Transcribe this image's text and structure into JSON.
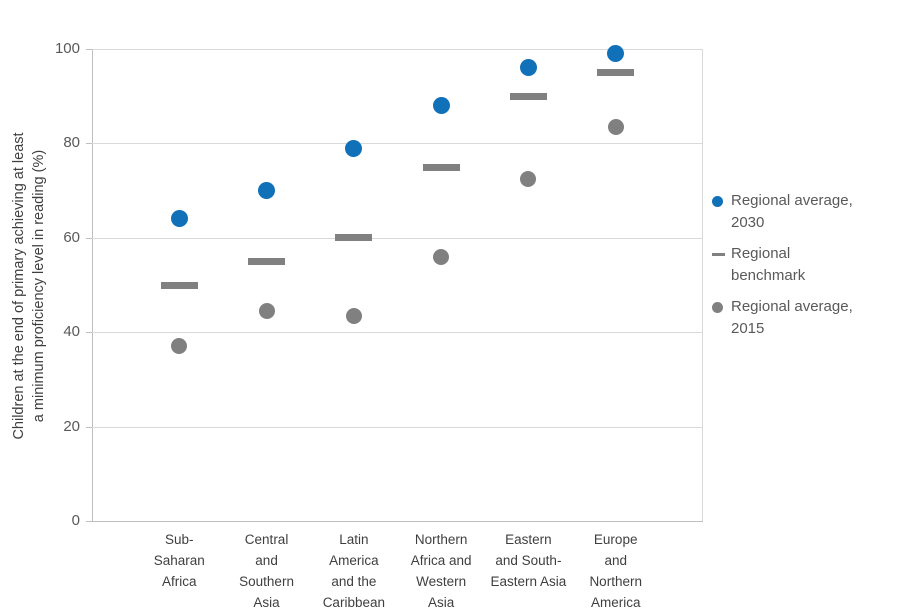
{
  "chart_data": {
    "type": "scatter",
    "title": "",
    "xlabel": "",
    "ylabel": "Children at the end of primary achieving at least a minimum proficiency level in reading (%)",
    "ylabel_lines": [
      "Children at the end of primary achieving at least",
      "a minimum proficiency level in reading (%)"
    ],
    "ylim": [
      0,
      100
    ],
    "yticks": [
      0,
      20,
      40,
      60,
      80,
      100
    ],
    "grid": true,
    "legend_position": "right",
    "categories": [
      "Sub-Saharan Africa",
      "Central and Southern Asia",
      "Latin America and the Caribbean",
      "Northern Africa and Western Asia",
      "Eastern and South-Eastern Asia",
      "Europe and Northern America"
    ],
    "category_label_lines": [
      [
        "Sub-",
        "Saharan",
        "Africa"
      ],
      [
        "Central",
        "and",
        "Southern",
        "Asia"
      ],
      [
        "Latin",
        "America",
        "and the",
        "Caribbean"
      ],
      [
        "Northern",
        "Africa and",
        "Western",
        "Asia"
      ],
      [
        "Eastern",
        "and South-",
        "Eastern Asia"
      ],
      [
        "Europe",
        "and",
        "Northern",
        "America"
      ]
    ],
    "series": [
      {
        "name": "Regional average, 2030",
        "marker": "circle",
        "size": 17,
        "color": "#1070b8",
        "values": [
          64,
          70,
          79,
          88,
          96,
          99
        ]
      },
      {
        "name": "Regional benchmark",
        "marker": "dash",
        "dash_w": 37,
        "dash_h": 7,
        "color": "#808080",
        "values": [
          50,
          55,
          60,
          75,
          90,
          95
        ]
      },
      {
        "name": "Regional average, 2015",
        "marker": "circle",
        "size": 16,
        "color": "#808080",
        "values": [
          37,
          44.5,
          43.5,
          56,
          72.5,
          83.5
        ]
      }
    ],
    "legend": [
      {
        "marker": "circle",
        "color": "#1070b8",
        "label": "Regional average, 2030",
        "label_lines": [
          "Regional average,",
          "2030"
        ]
      },
      {
        "marker": "dash",
        "color": "#808080",
        "label": "Regional benchmark",
        "label_lines": [
          "Regional",
          "benchmark"
        ]
      },
      {
        "marker": "circle",
        "color": "#808080",
        "label": "Regional average, 2015",
        "label_lines": [
          "Regional average,",
          "2015"
        ]
      }
    ],
    "colors": {
      "blue": "#1070b8",
      "gray": "#808080",
      "gridline": "#d9d9d9",
      "axis_line": "#bfbfbf",
      "tick_text": "#595959",
      "category_text": "#3f3f3f",
      "legend_text": "#595959",
      "background": "#ffffff"
    }
  }
}
